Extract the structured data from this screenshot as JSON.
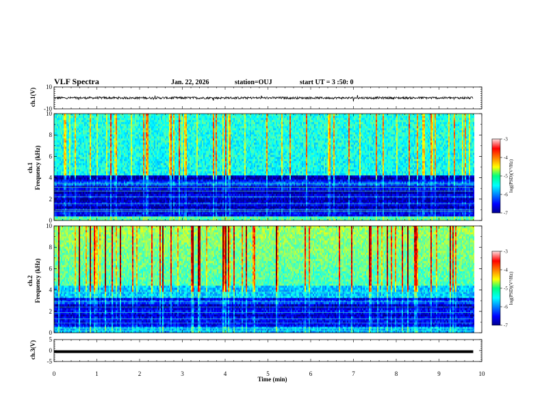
{
  "header": {
    "title": "VLF Spectra",
    "date": "Jan. 22, 2026",
    "station": "station=OUJ",
    "start": "start UT =  3 :50: 0"
  },
  "chart_data": [
    {
      "type": "line",
      "name": "ch1-waveform",
      "ylabel": "ch.1(V)",
      "ylim": [
        -10,
        10
      ],
      "yticks": [
        "10",
        "-10"
      ],
      "xlim": [
        0,
        10
      ],
      "baseline": 0,
      "amplitude": "approximately ±1 V noise, occasional spikes up to ~3 V"
    },
    {
      "type": "heatmap",
      "name": "ch1-spectrogram",
      "ylabel_line1": "ch.1",
      "ylabel_line2": "Frequency (kHz)",
      "ylim": [
        0,
        10
      ],
      "yticks": [
        "0",
        "2",
        "4",
        "6",
        "8",
        "10"
      ],
      "xlim": [
        0,
        10
      ],
      "data_end_min": 9.8,
      "colorbar": {
        "label": "log(PSD)(V²/Hz)",
        "ticks": [
          "-3",
          "-4",
          "-5",
          "-6",
          "-7"
        ],
        "range": [
          -7,
          -3
        ]
      }
    },
    {
      "type": "heatmap",
      "name": "ch2-spectrogram",
      "ylabel_line1": "ch.2",
      "ylabel_line2": "Frequency (kHz)",
      "ylim": [
        0,
        10
      ],
      "yticks": [
        "0",
        "2",
        "4",
        "6",
        "8",
        "10"
      ],
      "xlim": [
        0,
        10
      ],
      "data_end_min": 9.8,
      "colorbar": {
        "label": "log(PSD)(V²/Hz)",
        "ticks": [
          "-3",
          "-4",
          "-5",
          "-6",
          "-7"
        ],
        "range": [
          -7,
          -3
        ]
      }
    },
    {
      "type": "line",
      "name": "ch3-waveform",
      "ylabel": "ch.3(V)",
      "ylim": [
        -5,
        5
      ],
      "yticks": [
        "5",
        "0",
        "-5"
      ],
      "xlim": [
        0,
        10
      ],
      "baseline": -0.5
    }
  ],
  "xaxis": {
    "label": "Time (min)",
    "ticks": [
      "0",
      "1",
      "2",
      "3",
      "4",
      "5",
      "6",
      "7",
      "8",
      "9",
      "10"
    ]
  }
}
